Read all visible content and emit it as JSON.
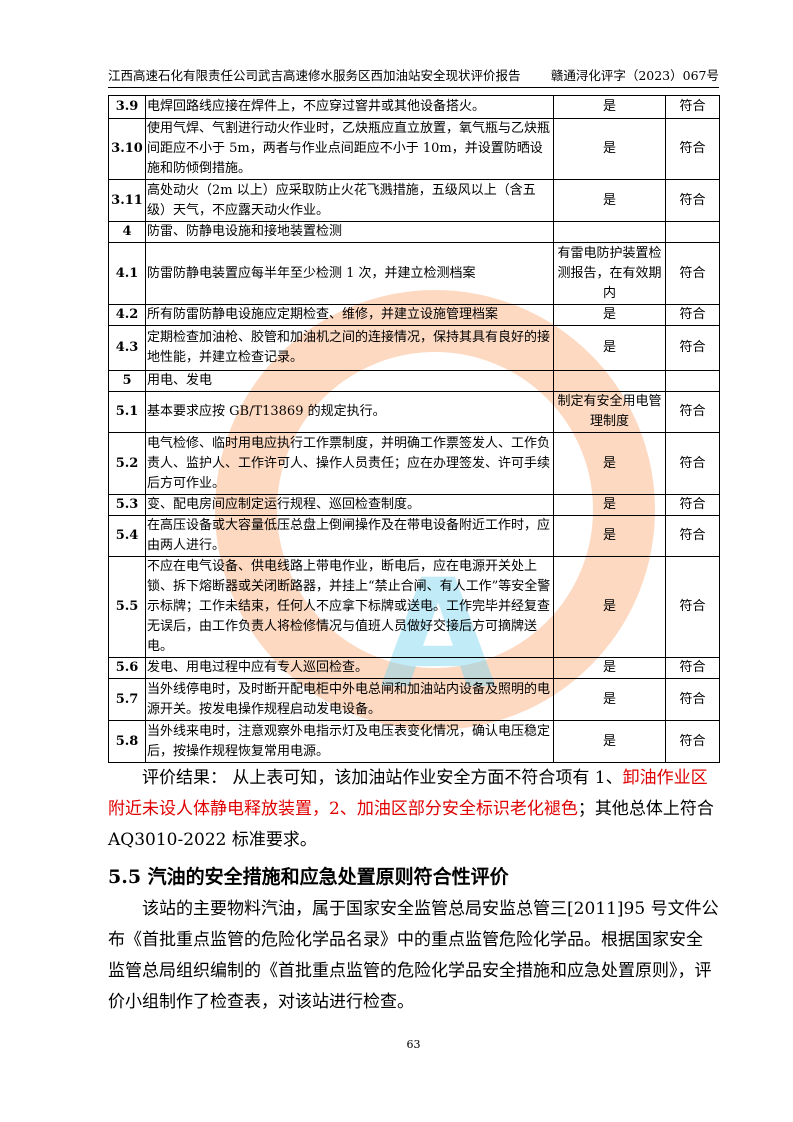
{
  "header": {
    "left": "江西高速石化有限责任公司武吉高速修水服务区西加油站安全现状评价报告",
    "right": "赣通浔化评字（2023）067号"
  },
  "table": {
    "rows": [
      {
        "no": "3.9",
        "content": "电焊回路线应接在焊件上，不应穿过窨井或其他设备搭火。",
        "result": "是",
        "verdict": "符合"
      },
      {
        "no": "3.10",
        "content": "使用气焊、气割进行动火作业时，乙炔瓶应直立放置，氧气瓶与乙炔瓶间距应不小于 5m，两者与作业点间距应不小于 10m，并设置防晒设施和防倾倒措施。",
        "result": "是",
        "verdict": "符合"
      },
      {
        "no": "3.11",
        "content": "高处动火（2m 以上）应采取防止火花飞溅措施，五级风以上（含五级）天气，不应露天动火作业。",
        "result": "是",
        "verdict": "符合"
      },
      {
        "no": "4",
        "content": "防雷、防静电设施和接地装置检测",
        "result": "",
        "verdict": ""
      },
      {
        "no": "4.1",
        "content": "防雷防静电装置应每半年至少检测 1 次，并建立检测档案",
        "result": "有雷电防护装置检测报告，在有效期内",
        "verdict": "符合"
      },
      {
        "no": "4.2",
        "content": "所有防雷防静电设施应定期检查、维修，并建立设施管理档案",
        "result": "是",
        "verdict": "符合"
      },
      {
        "no": "4.3",
        "content": "定期检查加油枪、胶管和加油机之间的连接情况，保持其具有良好的接地性能，并建立检查记录。",
        "result": "是",
        "verdict": "符合"
      },
      {
        "no": "5",
        "content": "用电、发电",
        "result": "",
        "verdict": ""
      },
      {
        "no": "5.1",
        "content": "基本要求应按 GB/T13869 的规定执行。",
        "result": "制定有安全用电管理制度",
        "verdict": "符合"
      },
      {
        "no": "5.2",
        "content": "电气检修、临时用电应执行工作票制度，并明确工作票签发人、工作负责人、监护人、工作许可人、操作人员责任；应在办理签发、许可手续后方可作业。",
        "result": "是",
        "verdict": "符合"
      },
      {
        "no": "5.3",
        "content": "变、配电房间应制定运行规程、巡回检查制度。",
        "result": "是",
        "verdict": "符合"
      },
      {
        "no": "5.4",
        "content": "在高压设备或大容量低压总盘上倒闸操作及在带电设备附近工作时，应由两人进行。",
        "result": "是",
        "verdict": "符合"
      },
      {
        "no": "5.5",
        "content": "不应在电气设备、供电线路上带电作业，断电后，应在电源开关处上锁、拆下熔断器或关闭断路器，并挂上“禁止合闸、有人工作”等安全警示标牌；工作未结束，任何人不应拿下标牌或送电。工作完毕并经复查无误后，由工作负责人将检修情况与值班人员做好交接后方可摘牌送电。",
        "result": "是",
        "verdict": "符合"
      },
      {
        "no": "5.6",
        "content": "发电、用电过程中应有专人巡回检查。",
        "result": "是",
        "verdict": "符合"
      },
      {
        "no": "5.7",
        "content": "当外线停电时，及时断开配电柜中外电总闸和加油站内设备及照明的电源开关。按发电操作规程启动发电设备。",
        "result": "是",
        "verdict": "符合"
      },
      {
        "no": "5.8",
        "content": "当外线来电时，注意观察外电指示灯及电压表变化情况，确认电压稳定后，按操作规程恢复常用电源。",
        "result": "是",
        "verdict": "符合"
      }
    ]
  },
  "conclusion": {
    "p1": "评价结果： 从上表可知，该加油站作业安全方面不符合项有 1、",
    "red1": "卸油作业区附近未设人体静电释放装置，2、加油区部分安全标识老化褪色",
    "p2": "；其他总体上符合 AQ3010-2022 标准要求。"
  },
  "section": {
    "title": "5.5 汽油的安全措施和应急处置原则符合性评价",
    "para": "该站的主要物料汽油，属于国家安全监管总局安监总管三[2011]95 号文件公布《首批重点监管的危险化学品名录》中的重点监管危险化学品。根据国家安全监管总局组织编制的《首批重点监管的危险化学品安全措施和应急处置原则》，评价小组制作了检查表，对该站进行检查。"
  },
  "page_number": "63",
  "colors": {
    "red": "#e00000",
    "watermark_orange": "#faaa78",
    "watermark_blue": "#78d2f0"
  }
}
